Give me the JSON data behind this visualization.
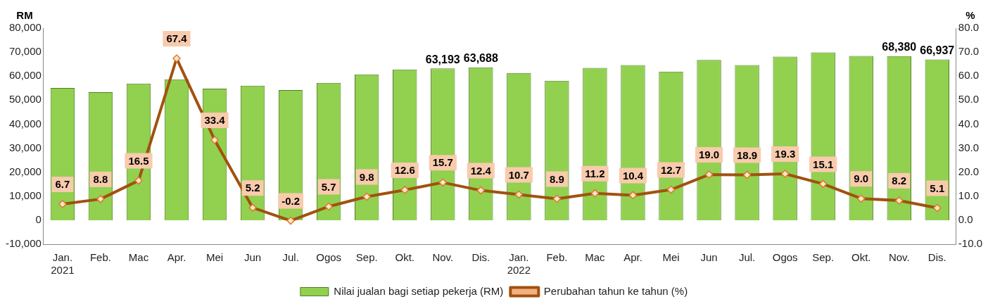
{
  "chart_data": {
    "type": "bar",
    "categories": [
      "Jan.\n2021",
      "Feb.",
      "Mac",
      "Apr.",
      "Mei",
      "Jun",
      "Jul.",
      "Ogos",
      "Sep.",
      "Okt.",
      "Nov.",
      "Dis.",
      "Jan.\n2022",
      "Feb.",
      "Mac",
      "Apr.",
      "Mei",
      "Jun",
      "Jul.",
      "Ogos",
      "Sep.",
      "Okt.",
      "Nov.",
      "Dis."
    ],
    "series": [
      {
        "name": "Nilai jualan bagi setiap pekerja (RM)",
        "color": "#92d050",
        "values": [
          55100,
          53300,
          56900,
          58700,
          54800,
          56000,
          54200,
          57200,
          60700,
          62800,
          63193,
          63688,
          61300,
          58100,
          63400,
          64600,
          61900,
          66700,
          64600,
          68100,
          69900,
          68400,
          68380,
          66937
        ],
        "value_labels": [
          null,
          null,
          null,
          null,
          null,
          null,
          null,
          null,
          null,
          null,
          "63,193",
          "63,688",
          null,
          null,
          null,
          null,
          null,
          null,
          null,
          null,
          null,
          null,
          "68,380",
          "66,937"
        ]
      },
      {
        "name": "Perubahan tahun ke tahun (%)",
        "type": "line",
        "axis": "y2",
        "color": "#a0520f",
        "marker": "diamond",
        "line_style": "solid",
        "values": [
          6.7,
          8.8,
          16.5,
          67.4,
          33.4,
          5.2,
          -0.2,
          5.7,
          9.8,
          12.6,
          15.7,
          12.4,
          10.7,
          8.9,
          11.2,
          10.4,
          12.7,
          19.0,
          18.9,
          19.3,
          15.1,
          9.0,
          8.2,
          5.1
        ],
        "value_labels": [
          "6.7",
          "8.8",
          "16.5",
          "67.4",
          "33.4",
          "5.2",
          "-0.2",
          "5.7",
          "9.8",
          "12.6",
          "15.7",
          "12.4",
          "10.7",
          "8.9",
          "11.2",
          "10.4",
          "12.7",
          "19.0",
          "18.9",
          "19.3",
          "15.1",
          "9.0",
          "8.2",
          "5.1"
        ]
      }
    ],
    "ylabel": "RM",
    "y2label": "%",
    "ylim": [
      -10000,
      80000
    ],
    "yticks": [
      {
        "value": -10000,
        "label": "-10,000"
      },
      {
        "value": 0,
        "label": "0"
      },
      {
        "value": 10000,
        "label": "10,000"
      },
      {
        "value": 20000,
        "label": "20,000"
      },
      {
        "value": 30000,
        "label": "30,000"
      },
      {
        "value": 40000,
        "label": "40,000"
      },
      {
        "value": 50000,
        "label": "50,000"
      },
      {
        "value": 60000,
        "label": "60,000"
      },
      {
        "value": 70000,
        "label": "70,000"
      },
      {
        "value": 80000,
        "label": "80,000"
      }
    ],
    "y2lim": [
      -10,
      80
    ],
    "y2ticks": [
      {
        "value": -10,
        "label": "-10.0"
      },
      {
        "value": 0,
        "label": "0.0"
      },
      {
        "value": 10,
        "label": "10.0"
      },
      {
        "value": 20,
        "label": "20.0"
      },
      {
        "value": 30,
        "label": "30.0"
      },
      {
        "value": 40,
        "label": "40.0"
      },
      {
        "value": 50,
        "label": "50.0"
      },
      {
        "value": 60,
        "label": "60.0"
      },
      {
        "value": 70,
        "label": "70.0"
      },
      {
        "value": 80,
        "label": "80.0"
      }
    ],
    "grid": false,
    "legend": "bottom"
  }
}
